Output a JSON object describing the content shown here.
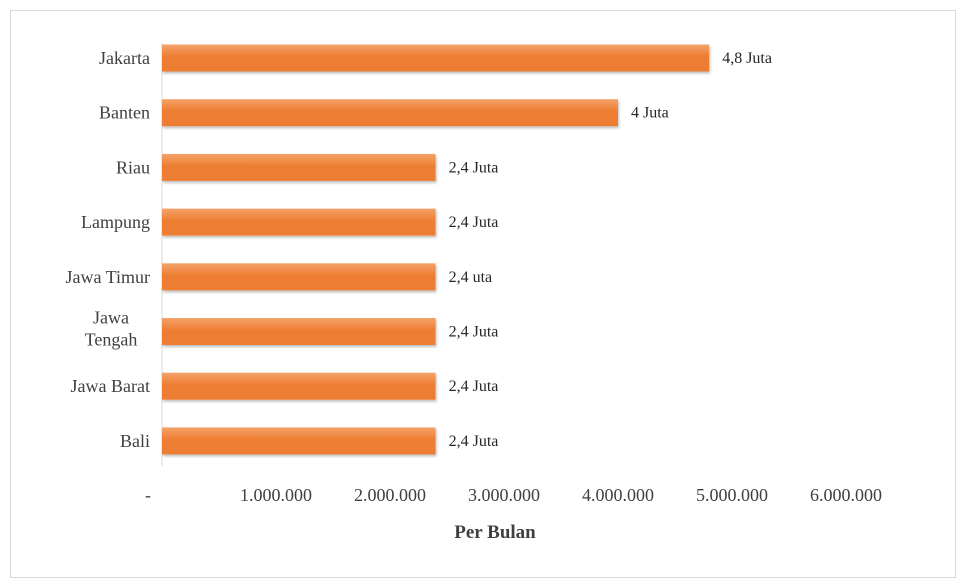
{
  "chart_data": {
    "type": "bar",
    "orientation": "horizontal",
    "categories": [
      "Jakarta",
      "Banten",
      "Riau",
      "Lampung",
      "Jawa Timur",
      "Jawa Tengah",
      "Jawa Barat",
      "Bali"
    ],
    "values": [
      4800000,
      4000000,
      2400000,
      2400000,
      2400000,
      2400000,
      2400000,
      2400000
    ],
    "data_labels": [
      "4,8 Juta",
      "4 Juta",
      "2,4 Juta",
      "2,4 Juta",
      "2,4 uta",
      "2,4 Juta",
      "2,4 Juta",
      "2,4 Juta"
    ],
    "title": "",
    "xlabel": "Per Bulan",
    "ylabel": "",
    "xlim": [
      0,
      6000000
    ],
    "x_ticks": [
      0,
      1000000,
      2000000,
      3000000,
      4000000,
      5000000,
      6000000
    ],
    "x_tick_labels": [
      "-",
      "1.000.000",
      "2.000.000",
      "3.000.000",
      "4.000.000",
      "5.000.000",
      "6.000.000"
    ],
    "grid": false,
    "legend": "none",
    "bar_color": "#ed7d31",
    "bar_color_light": "#f4a36b"
  }
}
